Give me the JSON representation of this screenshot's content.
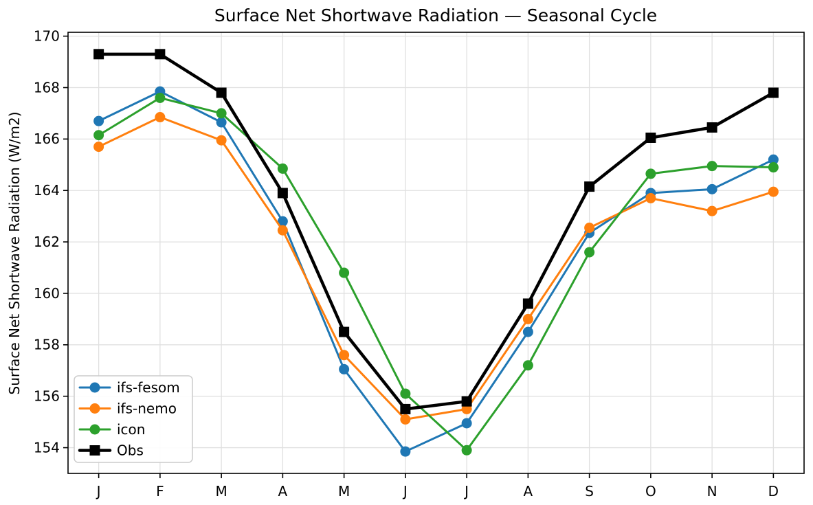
{
  "chart_data": {
    "type": "line",
    "title": "Surface Net Shortwave Radiation — Seasonal Cycle",
    "xlabel": "",
    "ylabel": "Surface Net Shortwave Radiation (W/m2)",
    "categories": [
      "J",
      "F",
      "M",
      "A",
      "M",
      "J",
      "J",
      "A",
      "S",
      "O",
      "N",
      "D"
    ],
    "yticks": [
      154,
      156,
      158,
      160,
      162,
      164,
      166,
      168,
      170
    ],
    "ylim": [
      153.0,
      170.15
    ],
    "xlim": [
      -0.5,
      11.5
    ],
    "grid": true,
    "grid_color": "#e0e0e0",
    "background": "#ffffff",
    "legend_position": "lower left",
    "series": [
      {
        "name": "ifs-fesom",
        "color": "#1f77b4",
        "marker": "circle",
        "lw": 3,
        "values": [
          166.7,
          167.85,
          166.65,
          162.8,
          157.05,
          153.85,
          154.95,
          158.5,
          162.35,
          163.9,
          164.05,
          165.2
        ]
      },
      {
        "name": "ifs-nemo",
        "color": "#ff7f0e",
        "marker": "circle",
        "lw": 3,
        "values": [
          165.7,
          166.85,
          165.95,
          162.45,
          157.6,
          155.1,
          155.5,
          159.0,
          162.55,
          163.7,
          163.2,
          163.95
        ]
      },
      {
        "name": "icon",
        "color": "#2ca02c",
        "marker": "circle",
        "lw": 3,
        "values": [
          166.15,
          167.6,
          167.0,
          164.85,
          160.8,
          156.1,
          153.9,
          157.2,
          161.6,
          164.65,
          164.95,
          164.9
        ]
      },
      {
        "name": "Obs",
        "color": "#000000",
        "marker": "square",
        "lw": 4.5,
        "values": [
          169.3,
          169.3,
          167.8,
          163.9,
          158.5,
          155.5,
          155.8,
          159.6,
          164.15,
          166.05,
          166.45,
          167.8
        ]
      }
    ]
  }
}
